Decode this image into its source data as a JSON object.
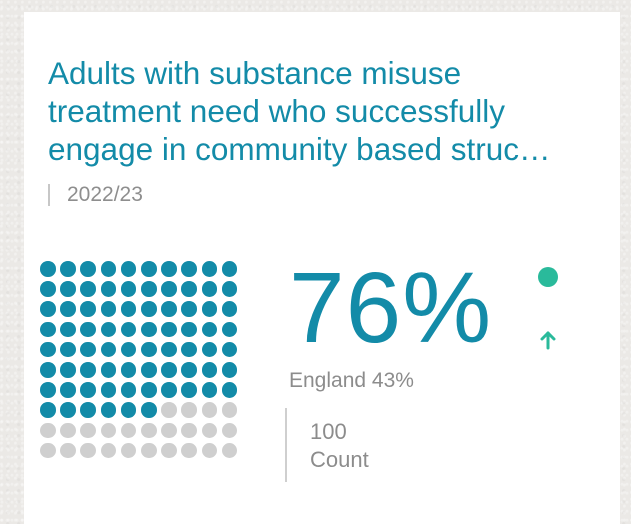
{
  "card": {
    "title_lines": [
      "Adults with substance misuse",
      "treatment need who successfully",
      "engage in community based struc…"
    ],
    "period": "2022/23"
  },
  "waffle": {
    "filled_dots": 76,
    "total_dots": 100,
    "filled_color": "#138ba8",
    "empty_color": "#cfcfcf"
  },
  "metric": {
    "value": "76%",
    "comparator": "England 43%",
    "count_value": "100",
    "count_label": "Count",
    "status_color": "#2aba9b",
    "trend_icon": "arrow-up-icon"
  }
}
